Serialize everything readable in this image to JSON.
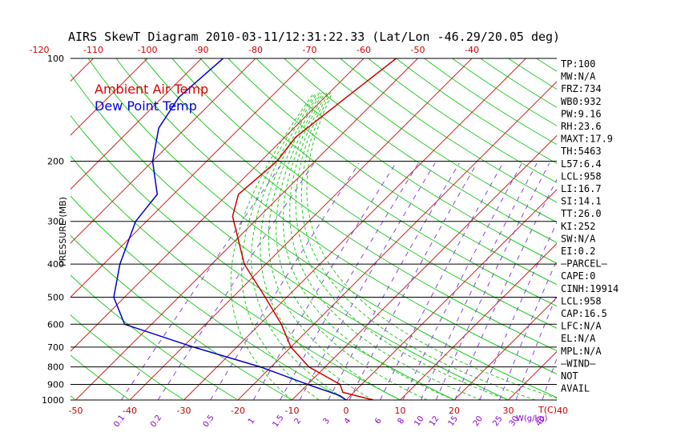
{
  "chart_data": {
    "type": "line",
    "title": "AIRS SkewT Diagram 2010-03-11/12:31:22.33 (Lat/Lon -46.29/20.05 deg)",
    "ylabel": "PRESSURE (MB)",
    "xlabel_right": "T(C)",
    "mixing_unit_label": "W(g/kg)",
    "pressure_ticks": [
      100,
      200,
      300,
      400,
      500,
      600,
      700,
      800,
      900,
      1000
    ],
    "bottom_temp_ticks": [
      -50,
      -40,
      -30,
      -20,
      -10,
      0,
      10,
      20,
      30,
      40
    ],
    "top_temp_ticks": [
      -120,
      -110,
      -100,
      -90,
      -80,
      -70,
      -60,
      -50,
      -40
    ],
    "mixing_ratio_labels": [
      "0.1",
      "0.2",
      "0.5",
      "1",
      "1.5",
      "2",
      "3",
      "4",
      "6",
      "8",
      "10",
      "12",
      "15",
      "20",
      "25",
      "30",
      "40"
    ],
    "legend": [
      {
        "name": "Ambient Air Temp",
        "color": "#dd0000"
      },
      {
        "name": "Dew Point Temp",
        "color": "#0000dd"
      }
    ],
    "series": [
      {
        "name": "Ambient Air Temp",
        "color": "#cc0000",
        "points": [
          [
            -54,
            100
          ],
          [
            -56,
            130
          ],
          [
            -58,
            170
          ],
          [
            -57,
            200
          ],
          [
            -58,
            250
          ],
          [
            -55,
            290
          ],
          [
            -44,
            400
          ],
          [
            -34,
            500
          ],
          [
            -26,
            600
          ],
          [
            -20,
            700
          ],
          [
            -13,
            800
          ],
          [
            -4,
            900
          ],
          [
            -2,
            950
          ],
          [
            5,
            1000
          ]
        ]
      },
      {
        "name": "Dew Point Temp",
        "color": "#0000cc",
        "points": [
          [
            -86,
            100
          ],
          [
            -87,
            130
          ],
          [
            -85,
            160
          ],
          [
            -80,
            200
          ],
          [
            -73,
            250
          ],
          [
            -72,
            300
          ],
          [
            -67,
            400
          ],
          [
            -62,
            500
          ],
          [
            -55,
            600
          ],
          [
            -38,
            700
          ],
          [
            -22,
            800
          ],
          [
            -10,
            900
          ],
          [
            -2,
            970
          ],
          [
            0,
            1000
          ]
        ]
      }
    ]
  },
  "indices": [
    "TP:100",
    "MW:N/A",
    "FRZ:734",
    "WB0:932",
    "PW:9.16",
    "RH:23.6",
    "MAXT:17.9",
    "TH:5463",
    "L57:6.4",
    "LCL:958",
    "LI:16.7",
    "SI:14.1",
    "TT:26.0",
    "KI:252",
    "SW:N/A",
    "EI:0.2",
    "–PARCEL–",
    "CAPE:0",
    "CINH:19914",
    "LCL:958",
    "CAP:16.5",
    "LFC:N/A",
    "EL:N/A",
    "MPL:N/A",
    "–WIND–",
    "NOT",
    "AVAIL"
  ]
}
